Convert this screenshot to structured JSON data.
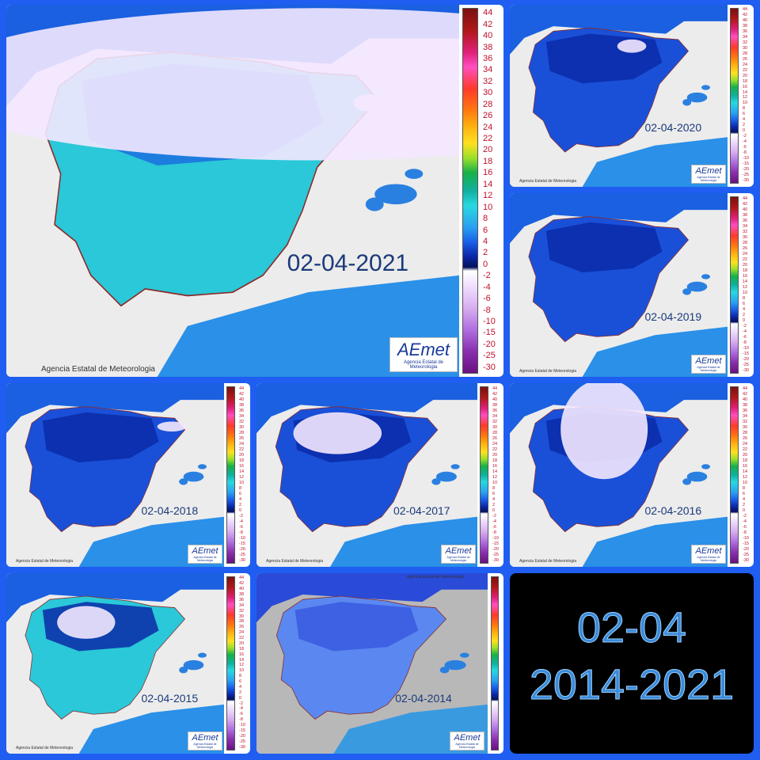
{
  "panels": [
    {
      "date": "02-04-2021"
    },
    {
      "date": "02-04-2020"
    },
    {
      "date": "02-04-2019"
    },
    {
      "date": "02-04-2018"
    },
    {
      "date": "02-04-2017"
    },
    {
      "date": "02-04-2016"
    },
    {
      "date": "02-04-2015"
    },
    {
      "date": "02-04-2014"
    }
  ],
  "credit": "Agencia Estatal de Meteorologia",
  "logo": "AEmet",
  "logo_caption": "Agencia Estatal de Meteorologia",
  "colorbar_labels": [
    "44",
    "42",
    "40",
    "38",
    "36",
    "34",
    "32",
    "30",
    "28",
    "26",
    "24",
    "22",
    "20",
    "18",
    "16",
    "14",
    "12",
    "10",
    "8",
    "6",
    "4",
    "2",
    "0",
    "-2",
    "-4",
    "-6",
    "-8",
    "-10",
    "-15",
    "-20",
    "-25",
    "-30"
  ],
  "summary": {
    "day": "02-04",
    "years": "2014-2021"
  }
}
